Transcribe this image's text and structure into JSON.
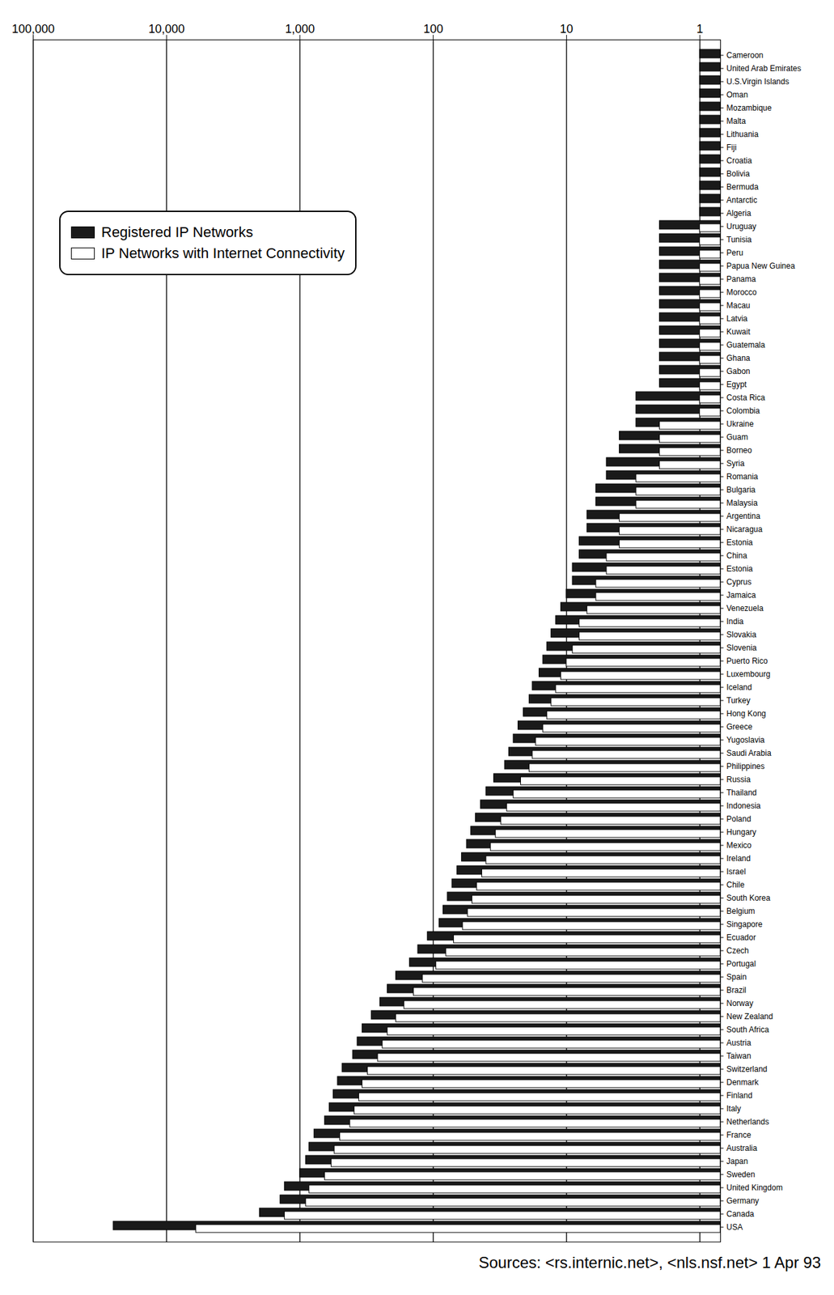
{
  "chart_data": {
    "type": "bar",
    "orientation": "horizontal",
    "log": "x",
    "grid": true,
    "legend": "top-left",
    "caption": "Sources: <rs.internic.net>, <nls.nsf.net> 1 Apr 93",
    "xlim": [
      0.7,
      100000
    ],
    "xticks": [
      1,
      10,
      100,
      {
        "value": 1000,
        "label": "1,000"
      },
      {
        "value": 10000,
        "label": "10,000"
      },
      {
        "value": 100000,
        "label": "100,000"
      }
    ],
    "categories": [
      "Cameroon",
      "United Arab Emirates",
      "U.S.Virgin Islands",
      "Oman",
      "Mozambique",
      "Malta",
      "Lithuania",
      "Fiji",
      "Croatia",
      "Bolivia",
      "Bermuda",
      "Antarctic",
      "Algeria",
      "Uruguay",
      "Tunisia",
      "Peru",
      "Papua New Guinea",
      "Panama",
      "Morocco",
      "Macau",
      "Latvia",
      "Kuwait",
      "Guatemala",
      "Ghana",
      "Gabon",
      "Egypt",
      "Costa Rica",
      "Colombia",
      "Ukraine",
      "Guam",
      "Borneo",
      "Syria",
      "Romania",
      "Bulgaria",
      "Malaysia",
      "Argentina",
      "Nicaragua",
      "Estonia",
      "China",
      "Estonia",
      "Cyprus",
      "Jamaica",
      "Venezuela",
      "India",
      "Slovakia",
      "Slovenia",
      "Puerto Rico",
      "Luxembourg",
      "Iceland",
      "Turkey",
      "Hong Kong",
      "Greece",
      "Yugoslavia",
      "Saudi Arabia",
      "Philippines",
      "Russia",
      "Thailand",
      "Indonesia",
      "Poland",
      "Hungary",
      "Mexico",
      "Ireland",
      "Israel",
      "Chile",
      "South Korea",
      "Belgium",
      "Singapore",
      "Ecuador",
      "Czech",
      "Portugal",
      "Spain",
      "Brazil",
      "Norway",
      "New Zealand",
      "South Africa",
      "Austria",
      "Taiwan",
      "Switzerland",
      "Denmark",
      "Finland",
      "Italy",
      "Netherlands",
      "France",
      "Australia",
      "Japan",
      "Sweden",
      "United Kingdom",
      "Germany",
      "Canada",
      "USA"
    ],
    "series": [
      {
        "name": "Registered IP Networks",
        "color": "#1a1a1a",
        "values": [
          1,
          1,
          1,
          1,
          1,
          1,
          1,
          1,
          1,
          1,
          1,
          1,
          1,
          2,
          2,
          2,
          2,
          2,
          2,
          2,
          2,
          2,
          2,
          2,
          2,
          2,
          3,
          3,
          3,
          4,
          4,
          5,
          5,
          6,
          6,
          7,
          7,
          8,
          8,
          9,
          9,
          10,
          11,
          12,
          13,
          14,
          15,
          16,
          18,
          19,
          21,
          23,
          25,
          27,
          29,
          35,
          40,
          44,
          48,
          52,
          56,
          61,
          66,
          72,
          78,
          84,
          90,
          110,
          130,
          150,
          190,
          220,
          250,
          290,
          340,
          370,
          400,
          480,
          520,
          560,
          600,
          650,
          780,
          850,
          900,
          1000,
          1300,
          1400,
          2000,
          25000
        ]
      },
      {
        "name": "IP Networks with Internet Connectivity",
        "color": "#ffffff",
        "values": [
          null,
          null,
          null,
          null,
          null,
          null,
          null,
          null,
          null,
          null,
          null,
          null,
          null,
          1,
          1,
          1,
          1,
          1,
          1,
          1,
          1,
          1,
          1,
          1,
          1,
          1,
          1,
          1,
          2,
          2,
          2,
          2,
          3,
          3,
          3,
          4,
          4,
          4,
          5,
          5,
          6,
          6,
          7,
          8,
          8,
          9,
          10,
          11,
          12,
          13,
          14,
          15,
          17,
          18,
          19,
          22,
          25,
          28,
          31,
          34,
          37,
          40,
          43,
          47,
          51,
          55,
          60,
          70,
          80,
          95,
          120,
          140,
          165,
          190,
          220,
          240,
          260,
          310,
          340,
          360,
          390,
          420,
          500,
          550,
          580,
          650,
          850,
          900,
          1300,
          6000
        ]
      }
    ]
  }
}
